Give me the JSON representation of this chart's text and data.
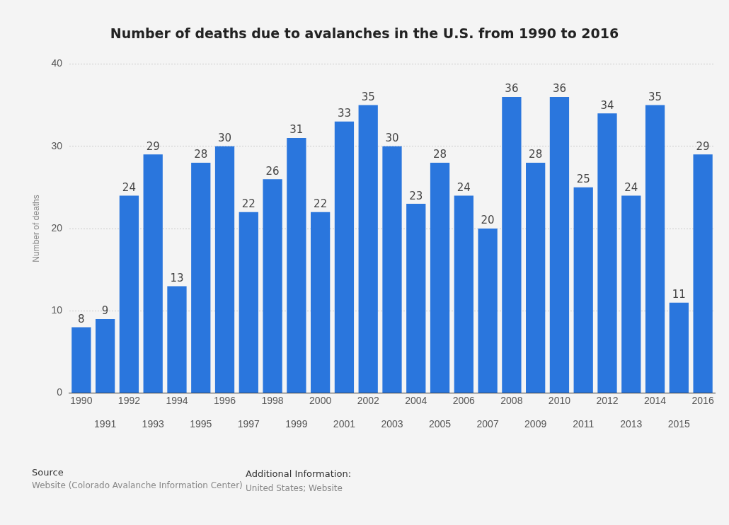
{
  "chart_data": {
    "type": "bar",
    "title": "Number of deaths due to avalanches in the U.S. from 1990 to 2016",
    "ylabel": "Number of deaths",
    "categories": [
      "1990",
      "1991",
      "1992",
      "1993",
      "1994",
      "1995",
      "1996",
      "1997",
      "1998",
      "1999",
      "2000",
      "2001",
      "2002",
      "2003",
      "2004",
      "2005",
      "2006",
      "2007",
      "2008",
      "2009",
      "2010",
      "2011",
      "2012",
      "2013",
      "2014",
      "2015",
      "2016"
    ],
    "values": [
      8,
      9,
      24,
      29,
      13,
      28,
      30,
      22,
      26,
      31,
      22,
      33,
      35,
      30,
      23,
      28,
      24,
      20,
      36,
      28,
      36,
      25,
      34,
      24,
      35,
      11,
      29
    ],
    "color": "#2a76dd",
    "ylim": [
      0,
      40
    ],
    "yticks": [
      0,
      10,
      20,
      30,
      40
    ],
    "grid": "y",
    "data_labels": true,
    "annotations": [
      "Source",
      "Website (Colorado Avalanche Information Center)",
      "Additional Information:",
      "United States; Website"
    ]
  }
}
